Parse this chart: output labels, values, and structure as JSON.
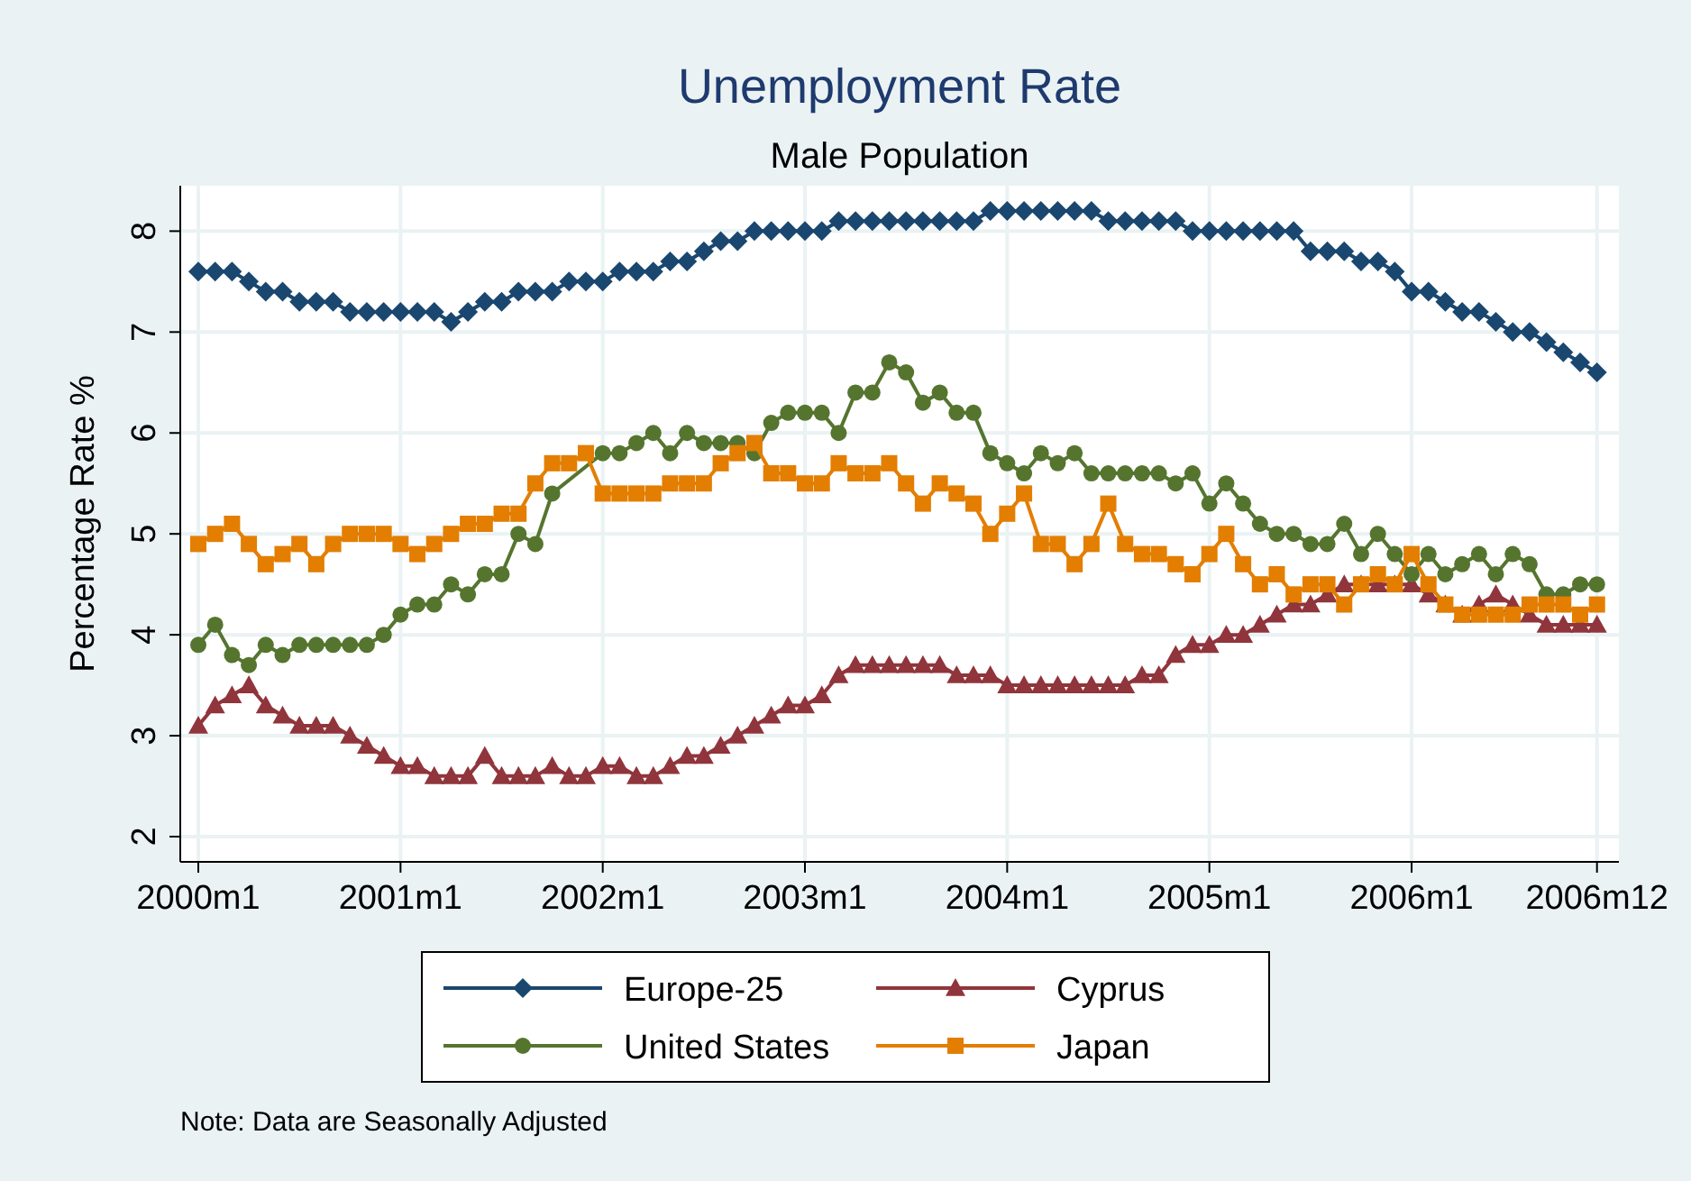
{
  "chart_data": {
    "type": "line",
    "title": "Unemployment Rate",
    "subtitle": "Male Population",
    "ylabel": "Percentage Rate %",
    "categories": [
      "2000m1",
      null,
      null,
      null,
      null,
      null,
      null,
      null,
      null,
      null,
      null,
      null,
      "2001m1",
      null,
      null,
      null,
      null,
      null,
      null,
      null,
      null,
      null,
      null,
      null,
      "2002m1",
      null,
      null,
      null,
      null,
      null,
      null,
      null,
      null,
      null,
      null,
      null,
      "2003m1",
      null,
      null,
      null,
      null,
      null,
      null,
      null,
      null,
      null,
      null,
      null,
      "2004m1",
      null,
      null,
      null,
      null,
      null,
      null,
      null,
      null,
      null,
      null,
      null,
      "2005m1",
      null,
      null,
      null,
      null,
      null,
      null,
      null,
      null,
      null,
      null,
      null,
      "2006m1",
      null,
      null,
      null,
      null,
      null,
      null,
      null,
      null,
      null,
      null,
      "2006m12"
    ],
    "ylim": [
      1.75,
      8.45
    ],
    "yticks": [
      2,
      3,
      4,
      5,
      6,
      7,
      8
    ],
    "grid": true,
    "legend": "bottom",
    "line_style": "solid",
    "series": [
      {
        "name": "Europe-25",
        "color": "#1a476f",
        "marker": "diamond",
        "values": [
          7.6,
          7.6,
          7.6,
          7.5,
          7.4,
          7.4,
          7.3,
          7.3,
          7.3,
          7.2,
          7.2,
          7.2,
          7.2,
          7.2,
          7.2,
          7.1,
          7.2,
          7.3,
          7.3,
          7.4,
          7.4,
          7.4,
          7.5,
          7.5,
          7.5,
          7.6,
          7.6,
          7.6,
          7.7,
          7.7,
          7.8,
          7.9,
          7.9,
          8.0,
          8.0,
          8.0,
          8.0,
          8.0,
          8.1,
          8.1,
          8.1,
          8.1,
          8.1,
          8.1,
          8.1,
          8.1,
          8.1,
          8.2,
          8.2,
          8.2,
          8.2,
          8.2,
          8.2,
          8.2,
          8.1,
          8.1,
          8.1,
          8.1,
          8.1,
          8.0,
          8.0,
          8.0,
          8.0,
          8.0,
          8.0,
          8.0,
          7.8,
          7.8,
          7.8,
          7.7,
          7.7,
          7.6,
          7.4,
          7.4,
          7.3,
          7.2,
          7.2,
          7.1,
          7.0,
          7.0,
          6.9,
          6.8,
          6.7,
          6.6
        ]
      },
      {
        "name": "Cyprus",
        "color": "#90353b",
        "marker": "triangle",
        "values": [
          3.1,
          3.3,
          3.4,
          3.5,
          3.3,
          3.2,
          3.1,
          3.1,
          3.1,
          3.0,
          2.9,
          2.8,
          2.7,
          2.7,
          2.6,
          2.6,
          2.6,
          2.8,
          2.6,
          2.6,
          2.6,
          2.7,
          2.6,
          2.6,
          2.7,
          2.7,
          2.6,
          2.6,
          2.7,
          2.8,
          2.8,
          2.9,
          3.0,
          3.1,
          3.2,
          3.3,
          3.3,
          3.4,
          3.6,
          3.7,
          3.7,
          3.7,
          3.7,
          3.7,
          3.7,
          3.6,
          3.6,
          3.6,
          3.5,
          3.5,
          3.5,
          3.5,
          3.5,
          3.5,
          3.5,
          3.5,
          3.6,
          3.6,
          3.8,
          3.9,
          3.9,
          4.0,
          4.0,
          4.1,
          4.2,
          4.3,
          4.3,
          4.4,
          4.5,
          4.5,
          4.5,
          4.5,
          4.5,
          4.4,
          4.3,
          4.2,
          4.3,
          4.4,
          4.3,
          4.2,
          4.1,
          4.1,
          4.1,
          4.1
        ]
      },
      {
        "name": "United States",
        "color": "#55752f",
        "marker": "circle",
        "values": [
          3.9,
          4.1,
          3.8,
          3.7,
          3.9,
          3.8,
          3.9,
          3.9,
          3.9,
          3.9,
          3.9,
          4.0,
          4.2,
          4.3,
          4.3,
          4.5,
          4.4,
          4.6,
          4.6,
          5.0,
          4.9,
          5.4,
          null,
          null,
          5.8,
          5.8,
          5.9,
          6.0,
          5.8,
          6.0,
          5.9,
          5.9,
          5.9,
          5.8,
          6.1,
          6.2,
          6.2,
          6.2,
          6.0,
          6.4,
          6.4,
          6.7,
          6.6,
          6.3,
          6.4,
          6.2,
          6.2,
          5.8,
          5.7,
          5.6,
          5.8,
          5.7,
          5.8,
          5.6,
          5.6,
          5.6,
          5.6,
          5.6,
          5.5,
          5.6,
          5.3,
          5.5,
          5.3,
          5.1,
          5.0,
          5.0,
          4.9,
          4.9,
          5.1,
          4.8,
          5.0,
          4.8,
          4.6,
          4.8,
          4.6,
          4.7,
          4.8,
          4.6,
          4.8,
          4.7,
          4.4,
          4.4,
          4.5,
          4.5
        ]
      },
      {
        "name": "Japan",
        "color": "#e37e00",
        "marker": "square",
        "values": [
          4.9,
          5.0,
          5.1,
          4.9,
          4.7,
          4.8,
          4.9,
          4.7,
          4.9,
          5.0,
          5.0,
          5.0,
          4.9,
          4.8,
          4.9,
          5.0,
          5.1,
          5.1,
          5.2,
          5.2,
          5.5,
          5.7,
          5.7,
          5.8,
          5.4,
          5.4,
          5.4,
          5.4,
          5.5,
          5.5,
          5.5,
          5.7,
          5.8,
          5.9,
          5.6,
          5.6,
          5.5,
          5.5,
          5.7,
          5.6,
          5.6,
          5.7,
          5.5,
          5.3,
          5.5,
          5.4,
          5.3,
          5.0,
          5.2,
          5.4,
          4.9,
          4.9,
          4.7,
          4.9,
          5.3,
          4.9,
          4.8,
          4.8,
          4.7,
          4.6,
          4.8,
          5.0,
          4.7,
          4.5,
          4.6,
          4.4,
          4.5,
          4.5,
          4.3,
          4.5,
          4.6,
          4.5,
          4.8,
          4.5,
          4.3,
          4.2,
          4.2,
          4.2,
          4.2,
          4.3,
          4.3,
          4.3,
          4.2,
          4.3
        ]
      }
    ],
    "annotations": [
      "Note: Data are Seasonally Adjusted"
    ]
  }
}
